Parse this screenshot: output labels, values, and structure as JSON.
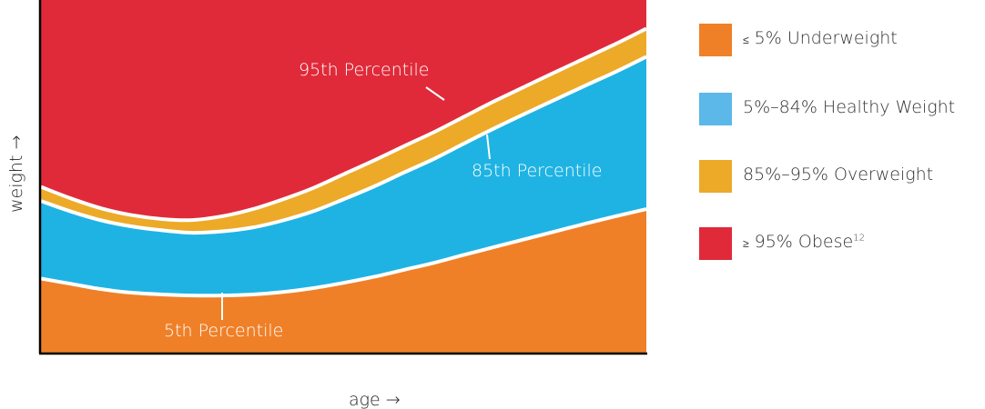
{
  "chart_data": {
    "type": "area",
    "xlabel": "age →",
    "ylabel": "weight →",
    "x": [
      0,
      0.05,
      0.1,
      0.15,
      0.2,
      0.25,
      0.3,
      0.35,
      0.4,
      0.45,
      0.5,
      0.55,
      0.6,
      0.65,
      0.7,
      0.75,
      0.8,
      0.85,
      0.9,
      0.95,
      1.0
    ],
    "xlim": [
      0,
      1
    ],
    "ylim": [
      0,
      1
    ],
    "series": [
      {
        "name": "≤ 5%  Underweight",
        "color": "#ef8028",
        "values": [
          0.21,
          0.195,
          0.18,
          0.17,
          0.165,
          0.162,
          0.162,
          0.165,
          0.172,
          0.183,
          0.198,
          0.215,
          0.235,
          0.255,
          0.278,
          0.3,
          0.322,
          0.344,
          0.366,
          0.387,
          0.407
        ]
      },
      {
        "name": "5%–84%  Healthy Weight",
        "color": "#1fb3e3",
        "values": [
          0.22,
          0.205,
          0.195,
          0.188,
          0.182,
          0.178,
          0.182,
          0.19,
          0.203,
          0.218,
          0.237,
          0.256,
          0.276,
          0.295,
          0.316,
          0.337,
          0.356,
          0.374,
          0.392,
          0.41,
          0.432
        ]
      },
      {
        "name": "85%–95%  Overweight",
        "color": "#ecaa28",
        "values": [
          0.04,
          0.037,
          0.034,
          0.032,
          0.032,
          0.036,
          0.043,
          0.052,
          0.06,
          0.066,
          0.071,
          0.074,
          0.075,
          0.076,
          0.076,
          0.077,
          0.077,
          0.078,
          0.078,
          0.079,
          0.08
        ]
      },
      {
        "name": "≥ 95%  Obese",
        "color": "#e02a3a",
        "values": [
          0.53,
          0.563,
          0.591,
          0.61,
          0.621,
          0.624,
          0.613,
          0.593,
          0.565,
          0.533,
          0.494,
          0.455,
          0.414,
          0.374,
          0.33,
          0.286,
          0.245,
          0.204,
          0.164,
          0.124,
          0.081
        ]
      }
    ],
    "annotations": [
      "95th Percentile",
      "85th Percentile",
      "5th Percentile"
    ],
    "grid": false,
    "legend_position": "right"
  },
  "legend": [
    {
      "symbol": "≤",
      "text": " 5%  Underweight",
      "sup": "",
      "color": "#ef8028"
    },
    {
      "symbol": "",
      "text": "5%–84%  Healthy Weight",
      "sup": "",
      "color": "#5bb8e8"
    },
    {
      "symbol": "",
      "text": "85%–95%  Overweight",
      "sup": "",
      "color": "#ecaa28"
    },
    {
      "symbol": "≥",
      "text": " 95%  Obese",
      "sup": "12",
      "color": "#e02a3a"
    }
  ]
}
